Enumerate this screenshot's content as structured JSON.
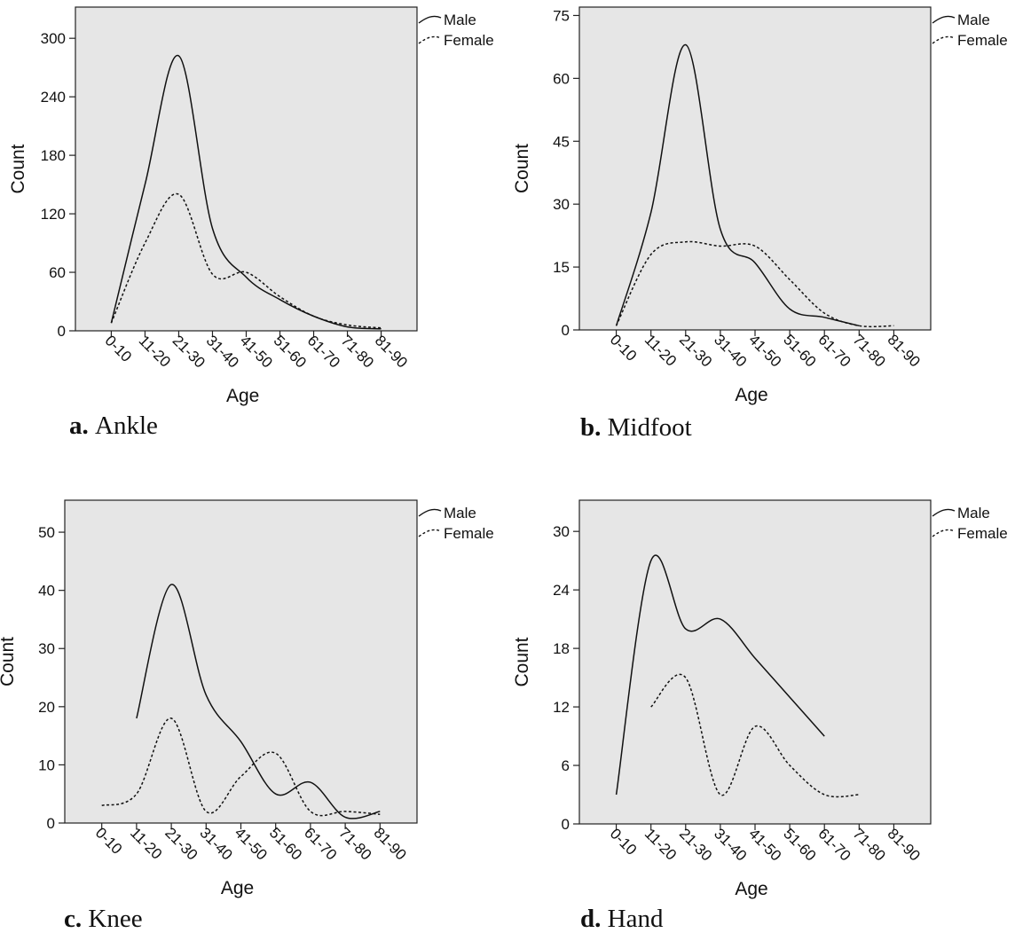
{
  "chart_data": [
    {
      "type": "line",
      "caption_letter": "a.",
      "caption": "Ankle",
      "xlabel": "Age",
      "ylabel": "Count",
      "categories": [
        "0-10",
        "11-20",
        "21-30",
        "31-40",
        "41-50",
        "51-60",
        "61-70",
        "71-80",
        "81-90"
      ],
      "yticks": [
        "0",
        "60",
        "120",
        "180",
        "240",
        "300"
      ],
      "ylim": [
        0,
        332
      ],
      "grid": false,
      "legend": "top-right",
      "series": [
        {
          "name": "Male",
          "style": "solid",
          "values": [
            8,
            150,
            282,
            105,
            55,
            32,
            15,
            4,
            2
          ]
        },
        {
          "name": "Female",
          "style": "dashed",
          "values": [
            8,
            90,
            140,
            58,
            60,
            35,
            15,
            6,
            3
          ]
        }
      ]
    },
    {
      "type": "line",
      "caption_letter": "b.",
      "caption": "Midfoot",
      "xlabel": "Age",
      "ylabel": "Count",
      "categories": [
        "0-10",
        "11-20",
        "21-30",
        "31-40",
        "41-50",
        "51-60",
        "61-70",
        "71-80",
        "81-90"
      ],
      "yticks": [
        "0",
        "15",
        "30",
        "45",
        "60",
        "75"
      ],
      "ylim": [
        0,
        77
      ],
      "grid": false,
      "legend": "top-right",
      "series": [
        {
          "name": "Male",
          "style": "solid",
          "values": [
            1,
            28,
            68,
            24,
            16,
            5,
            3,
            1,
            null
          ]
        },
        {
          "name": "Female",
          "style": "dashed",
          "values": [
            1,
            18,
            21,
            20,
            20,
            12,
            4,
            1,
            1
          ]
        }
      ]
    },
    {
      "type": "line",
      "caption_letter": "c.",
      "caption": "Knee",
      "xlabel": "Age",
      "ylabel": "Count",
      "categories": [
        "0-10",
        "11-20",
        "21-30",
        "31-40",
        "41-50",
        "51-60",
        "61-70",
        "71-80",
        "81-90"
      ],
      "yticks": [
        "0",
        "10",
        "20",
        "30",
        "40",
        "50"
      ],
      "ylim": [
        0,
        55.5
      ],
      "grid": false,
      "legend": "top-right",
      "series": [
        {
          "name": "Male",
          "style": "solid",
          "values": [
            null,
            18,
            41,
            22,
            14,
            5,
            7,
            1,
            2
          ]
        },
        {
          "name": "Female",
          "style": "dashed",
          "values": [
            3,
            5,
            18,
            2,
            8,
            12,
            2,
            2,
            1.5
          ]
        }
      ]
    },
    {
      "type": "line",
      "caption_letter": "d.",
      "caption": "Hand",
      "xlabel": "Age",
      "ylabel": "Count",
      "categories": [
        "0-10",
        "11-20",
        "21-30",
        "31-40",
        "41-50",
        "51-60",
        "61-70",
        "71-80",
        "81-90"
      ],
      "yticks": [
        "0",
        "6",
        "12",
        "18",
        "24",
        "30"
      ],
      "ylim": [
        0,
        33.2
      ],
      "grid": false,
      "legend": "top-right",
      "series": [
        {
          "name": "Male",
          "style": "solid",
          "values": [
            3,
            27,
            20,
            21,
            17,
            13,
            9,
            null,
            null
          ]
        },
        {
          "name": "Female",
          "style": "dashed",
          "values": [
            null,
            12,
            15,
            3,
            10,
            6,
            3,
            3,
            null
          ]
        }
      ]
    }
  ],
  "colors": {
    "plot_background": "#e6e6e6",
    "line": "#111111"
  }
}
